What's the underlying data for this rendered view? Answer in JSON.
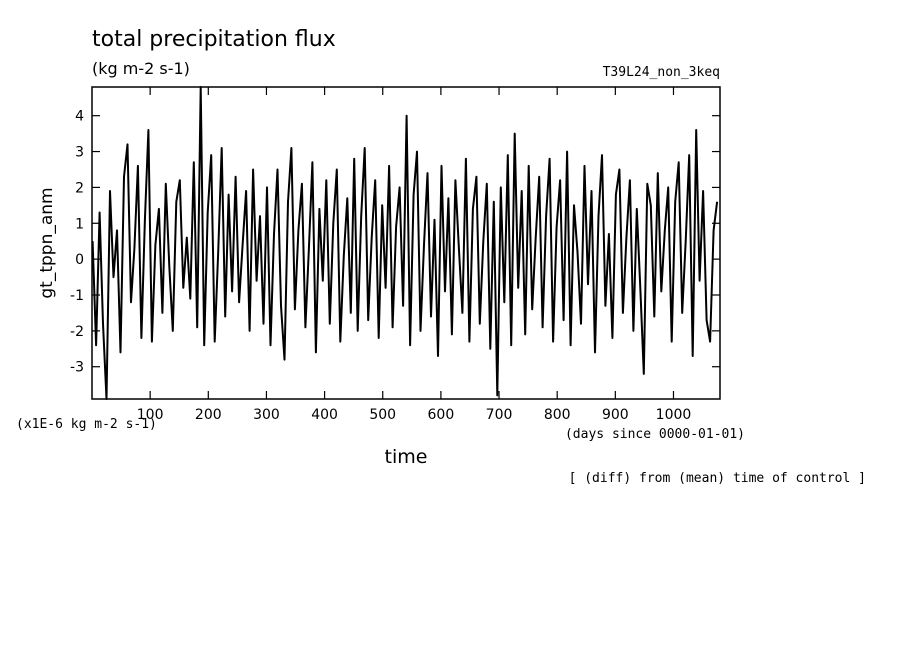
{
  "chart_data": {
    "type": "line",
    "title": "total precipitation flux",
    "subtitle": "(kg m-2 s-1)",
    "annotation": "T39L24_non_3keq",
    "y_label": "gt_tppn_anm",
    "y_units": "(x1E-6 kg m-2 s-1)",
    "x_label": "time",
    "x_units": "(days since 0000-01-01)",
    "note": "[ (diff) from (mean) time of control ]",
    "xlim": [
      0,
      1080
    ],
    "ylim": [
      -3.9,
      4.8
    ],
    "xticks": [
      100,
      200,
      300,
      400,
      500,
      600,
      700,
      800,
      900,
      1000
    ],
    "yticks": [
      -3,
      -2,
      -1,
      0,
      1,
      2,
      3,
      4
    ],
    "series": [
      {
        "color": "#000000",
        "x": [
          1,
          7,
          13,
          19,
          25,
          31,
          37,
          43,
          49,
          55,
          61,
          67,
          73,
          79,
          85,
          91,
          97,
          103,
          109,
          115,
          121,
          127,
          133,
          139,
          145,
          151,
          157,
          163,
          169,
          175,
          181,
          187,
          193,
          199,
          205,
          211,
          217,
          223,
          229,
          235,
          241,
          247,
          253,
          259,
          265,
          271,
          277,
          283,
          289,
          295,
          301,
          307,
          313,
          319,
          325,
          331,
          337,
          343,
          349,
          355,
          361,
          367,
          373,
          379,
          385,
          391,
          397,
          403,
          409,
          415,
          421,
          427,
          433,
          439,
          445,
          451,
          457,
          463,
          469,
          475,
          481,
          487,
          493,
          499,
          505,
          511,
          517,
          523,
          529,
          535,
          541,
          547,
          553,
          559,
          565,
          571,
          577,
          583,
          589,
          595,
          601,
          607,
          613,
          619,
          625,
          631,
          637,
          643,
          649,
          655,
          661,
          667,
          673,
          679,
          685,
          691,
          697,
          703,
          709,
          715,
          721,
          727,
          733,
          739,
          745,
          751,
          757,
          763,
          769,
          775,
          781,
          787,
          793,
          799,
          805,
          811,
          817,
          823,
          829,
          835,
          841,
          847,
          853,
          859,
          865,
          871,
          877,
          883,
          889,
          895,
          901,
          907,
          913,
          919,
          925,
          931,
          937,
          943,
          949,
          955,
          961,
          967,
          973,
          979,
          985,
          991,
          997,
          1003,
          1009,
          1015,
          1021,
          1027,
          1033,
          1039,
          1045,
          1051,
          1057,
          1063,
          1069,
          1075
        ],
        "values": [
          0.5,
          -2.4,
          1.3,
          -1.8,
          -3.9,
          1.9,
          -0.5,
          0.8,
          -2.6,
          2.3,
          3.2,
          -1.2,
          0.3,
          2.6,
          -2.2,
          1.1,
          3.6,
          -2.3,
          0.4,
          1.4,
          -1.5,
          2.1,
          -0.2,
          -2.0,
          1.6,
          2.2,
          -0.8,
          0.6,
          -1.1,
          2.7,
          -1.9,
          4.8,
          -2.4,
          1.3,
          2.9,
          -2.3,
          0.2,
          3.1,
          -1.6,
          1.8,
          -0.9,
          2.3,
          -1.2,
          0.4,
          1.9,
          -2.0,
          2.5,
          -0.6,
          1.2,
          -1.8,
          2.0,
          -2.4,
          0.7,
          2.5,
          -1.3,
          -2.8,
          1.6,
          3.1,
          -1.4,
          0.8,
          2.1,
          -1.9,
          0.3,
          2.7,
          -2.6,
          1.4,
          -0.6,
          2.2,
          -1.8,
          1.0,
          2.5,
          -2.3,
          0.1,
          1.7,
          -1.5,
          2.8,
          -2.0,
          1.2,
          3.1,
          -1.7,
          0.6,
          2.2,
          -2.2,
          1.5,
          -0.8,
          2.6,
          -1.9,
          0.9,
          2.0,
          -1.3,
          4.0,
          -2.4,
          1.8,
          3.0,
          -2.0,
          0.4,
          2.4,
          -1.6,
          1.1,
          -2.7,
          2.6,
          -0.9,
          1.7,
          -2.1,
          2.2,
          0.3,
          -1.5,
          2.8,
          -2.3,
          1.4,
          2.3,
          -1.8,
          0.5,
          2.1,
          -2.5,
          1.6,
          -3.8,
          2.0,
          -1.2,
          2.9,
          -2.4,
          3.5,
          -0.8,
          1.9,
          -2.1,
          2.6,
          -1.4,
          0.6,
          2.3,
          -1.9,
          1.2,
          2.8,
          -2.3,
          0.9,
          2.2,
          -1.7,
          3.0,
          -2.4,
          1.5,
          0.2,
          -1.8,
          2.6,
          -0.7,
          1.9,
          -2.6,
          1.2,
          2.9,
          -1.3,
          0.7,
          -2.2,
          1.8,
          2.5,
          -1.5,
          0.6,
          2.2,
          -2.0,
          1.4,
          -0.8,
          -3.2,
          2.1,
          1.5,
          -1.6,
          2.4,
          -0.9,
          0.8,
          2.0,
          -2.3,
          1.6,
          2.7,
          -1.5,
          0.5,
          2.9,
          -2.7,
          3.6,
          -0.6,
          1.9,
          -1.7,
          -2.3,
          0.8,
          1.6
        ]
      }
    ]
  }
}
